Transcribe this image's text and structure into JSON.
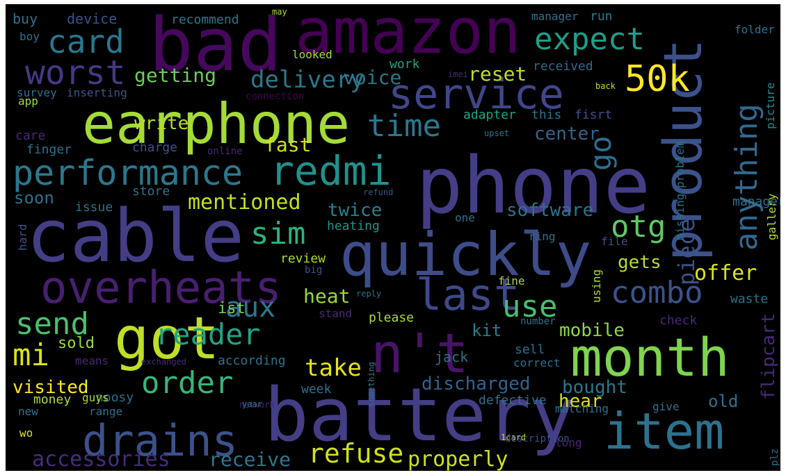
{
  "words": [
    {
      "text": "phone",
      "color": "#433e85"
    },
    {
      "text": "battery",
      "color": "#433e85"
    },
    {
      "text": "cable",
      "color": "#433e85"
    },
    {
      "text": "quickly",
      "color": "#3e4c8a"
    },
    {
      "text": "bad",
      "color": "#46085c"
    },
    {
      "text": "amazon",
      "color": "#440154"
    },
    {
      "text": "earphone",
      "color": "#a5db36"
    },
    {
      "text": "product",
      "color": "#3b528b"
    },
    {
      "text": "got",
      "color": "#bddf26"
    },
    {
      "text": "month",
      "color": "#7fd34e"
    },
    {
      "text": "n't",
      "color": "#481467"
    },
    {
      "text": "item",
      "color": "#2c728e"
    },
    {
      "text": "overheats",
      "color": "#481f70"
    },
    {
      "text": "drains",
      "color": "#3b528b"
    },
    {
      "text": "last",
      "color": "#3e4989"
    },
    {
      "text": "redmi",
      "color": "#21918c"
    },
    {
      "text": "service",
      "color": "#404688"
    },
    {
      "text": "performance",
      "color": "#2a788e"
    },
    {
      "text": "worst",
      "color": "#443983"
    },
    {
      "text": "card",
      "color": "#2a788e"
    },
    {
      "text": "expect",
      "color": "#1f9e89"
    },
    {
      "text": "50k",
      "color": "#fde725"
    },
    {
      "text": "anything",
      "color": "#31688e"
    },
    {
      "text": "time",
      "color": "#2a788e"
    },
    {
      "text": "go",
      "color": "#2e6e8e"
    },
    {
      "text": "otg",
      "color": "#5ec962"
    },
    {
      "text": "combo",
      "color": "#3b528b"
    },
    {
      "text": "order",
      "color": "#35b779"
    },
    {
      "text": "reader",
      "color": "#20a486"
    },
    {
      "text": "send",
      "color": "#4ac16d"
    },
    {
      "text": "mi",
      "color": "#d8e219"
    },
    {
      "text": "use",
      "color": "#44bf70"
    },
    {
      "text": "aux",
      "color": "#2a788e"
    },
    {
      "text": "sim",
      "color": "#2db27d"
    },
    {
      "text": "refuse",
      "color": "#d0e11c"
    },
    {
      "text": "delivery",
      "color": "#2a788e"
    },
    {
      "text": "take",
      "color": "#e5e419"
    },
    {
      "text": "getting",
      "color": "#6ccd5a"
    },
    {
      "text": "voice",
      "color": "#2a788e"
    },
    {
      "text": "reset",
      "color": "#bddf26"
    },
    {
      "text": "center",
      "color": "#33638d"
    },
    {
      "text": "fast",
      "color": "#d0e11c"
    },
    {
      "text": "write",
      "color": "#b5de2b"
    },
    {
      "text": "mentioned",
      "color": "#c2df23"
    },
    {
      "text": "software",
      "color": "#2c728e"
    },
    {
      "text": "twice",
      "color": "#26828e"
    },
    {
      "text": "piece",
      "color": "#3b528b"
    },
    {
      "text": "accessories",
      "color": "#472d7b"
    },
    {
      "text": "properly",
      "color": "#d0e11c"
    },
    {
      "text": "receive",
      "color": "#2a788e"
    },
    {
      "text": "visited",
      "color": "#fde725"
    },
    {
      "text": "discharged",
      "color": "#33638d"
    },
    {
      "text": "bought",
      "color": "#2a788e"
    },
    {
      "text": "hear",
      "color": "#d8e219"
    },
    {
      "text": "old",
      "color": "#2c728e"
    },
    {
      "text": "flipcart",
      "color": "#482878"
    },
    {
      "text": "offer",
      "color": "#dde318"
    },
    {
      "text": "gets",
      "color": "#b5de2b"
    },
    {
      "text": "mobile",
      "color": "#8fd744"
    },
    {
      "text": "kit",
      "color": "#277f8e"
    },
    {
      "text": "heat",
      "color": "#9bd93c"
    },
    {
      "text": "ist",
      "color": "#7ad151"
    },
    {
      "text": "sold",
      "color": "#a0da39"
    },
    {
      "text": "soon",
      "color": "#2c728e"
    },
    {
      "text": "buy",
      "color": "#2c728e"
    },
    {
      "text": "device",
      "color": "#3b528b"
    },
    {
      "text": "recommend",
      "color": "#2a788e"
    },
    {
      "text": "may",
      "color": "#a5db36"
    },
    {
      "text": "manager",
      "color": "#2c728e"
    },
    {
      "text": "run",
      "color": "#2a788e"
    },
    {
      "text": "boy",
      "color": "#2c728e"
    },
    {
      "text": "folder",
      "color": "#2c728e"
    },
    {
      "text": "looked",
      "color": "#a8db34"
    },
    {
      "text": "work",
      "color": "#1fa088"
    },
    {
      "text": "imei",
      "color": "#482878"
    },
    {
      "text": "received",
      "color": "#31688e"
    },
    {
      "text": "survey",
      "color": "#2c728e"
    },
    {
      "text": "inserting",
      "color": "#39568c"
    },
    {
      "text": "connection",
      "color": "#440154"
    },
    {
      "text": "back",
      "color": "#bddf26"
    },
    {
      "text": "app",
      "color": "#a0da39"
    },
    {
      "text": "adapter",
      "color": "#20a486"
    },
    {
      "text": "this",
      "color": "#2c728e"
    },
    {
      "text": "fisrt",
      "color": "#3b528b"
    },
    {
      "text": "picture",
      "color": "#228c8d"
    },
    {
      "text": "care",
      "color": "#482878"
    },
    {
      "text": "upset",
      "color": "#2a788e"
    },
    {
      "text": "finger",
      "color": "#2c728e"
    },
    {
      "text": "charge",
      "color": "#3b528b"
    },
    {
      "text": "online",
      "color": "#482878"
    },
    {
      "text": "problem",
      "color": "#2c728e"
    },
    {
      "text": "missing",
      "color": "#2c728e"
    },
    {
      "text": "store",
      "color": "#2c728e"
    },
    {
      "text": "refund",
      "color": "#3b528b"
    },
    {
      "text": "gallery",
      "color": "#b5de2b"
    },
    {
      "text": "manager",
      "color": "#2c728e"
    },
    {
      "text": "issue",
      "color": "#2c728e"
    },
    {
      "text": "heating",
      "color": "#21918c"
    },
    {
      "text": "one",
      "color": "#2c728e"
    },
    {
      "text": "ring",
      "color": "#2c728e"
    },
    {
      "text": "hard",
      "color": "#3b528b"
    },
    {
      "text": "file",
      "color": "#3b528b"
    },
    {
      "text": "review",
      "color": "#addc30"
    },
    {
      "text": "big",
      "color": "#3b528b"
    },
    {
      "text": "fine",
      "color": "#addc30"
    },
    {
      "text": "reply",
      "color": "#2c728e"
    },
    {
      "text": "using",
      "color": "#addc30"
    },
    {
      "text": "stand",
      "color": "#482878"
    },
    {
      "text": "waste",
      "color": "#2c728e"
    },
    {
      "text": "please",
      "color": "#addc30"
    },
    {
      "text": "number",
      "color": "#2c728e"
    },
    {
      "text": "check",
      "color": "#482878"
    },
    {
      "text": "something",
      "color": "#2a788e"
    },
    {
      "text": "jack",
      "color": "#2c728e"
    },
    {
      "text": "sell",
      "color": "#2c728e"
    },
    {
      "text": "means",
      "color": "#482878"
    },
    {
      "text": "exchanged",
      "color": "#482878"
    },
    {
      "text": "according",
      "color": "#2c728e"
    },
    {
      "text": "correct",
      "color": "#2c728e"
    },
    {
      "text": "noosy",
      "color": "#2c728e"
    },
    {
      "text": "week",
      "color": "#2c728e"
    },
    {
      "text": "money",
      "color": "#addc30"
    },
    {
      "text": "guys",
      "color": "#addc30"
    },
    {
      "text": "network",
      "color": "#482878"
    },
    {
      "text": "defective",
      "color": "#2c728e"
    },
    {
      "text": "new",
      "color": "#2c728e"
    },
    {
      "text": "range",
      "color": "#2c728e"
    },
    {
      "text": "yaar",
      "color": "#2c728e"
    },
    {
      "text": "matching",
      "color": "#2c728e"
    },
    {
      "text": "give",
      "color": "#2c728e"
    },
    {
      "text": "plz",
      "color": "#2c728e"
    },
    {
      "text": "wo",
      "color": "#d8e219"
    },
    {
      "text": "1card",
      "color": "#d8e219"
    },
    {
      "text": "description",
      "color": "#3b528b"
    },
    {
      "text": "long",
      "color": "#482878"
    }
  ]
}
